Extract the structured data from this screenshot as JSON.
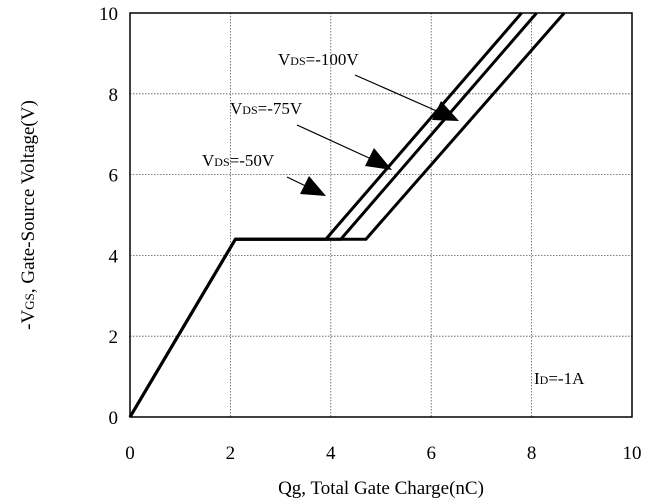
{
  "chart_data": {
    "type": "line",
    "title": "",
    "xlabel": "Qg, Total Gate Charge(nC)",
    "ylabel": "-VGS, Gate-Source Voltage(V)",
    "ylabel_parts": [
      "-V",
      "GS",
      ", Gate-Source Voltage(V)"
    ],
    "xlim": [
      0,
      10
    ],
    "ylim": [
      0,
      10
    ],
    "xticks": [
      0,
      2,
      4,
      6,
      8,
      10
    ],
    "yticks": [
      0,
      2,
      4,
      6,
      8,
      10
    ],
    "grid": true,
    "series": [
      {
        "name": "VDS=-50V",
        "name_parts": [
          "V",
          "DS",
          "=-50V"
        ],
        "x": [
          0,
          2.1,
          3.9,
          7.8
        ],
        "y": [
          0,
          4.4,
          4.4,
          10
        ]
      },
      {
        "name": "VDS=-75V",
        "name_parts": [
          "V",
          "DS",
          "=-75V"
        ],
        "x": [
          0,
          2.1,
          4.2,
          8.1
        ],
        "y": [
          0,
          4.4,
          4.4,
          10
        ]
      },
      {
        "name": "VDS=-100V",
        "name_parts": [
          "V",
          "DS",
          "=-100V"
        ],
        "x": [
          0,
          2.1,
          4.7,
          8.65
        ],
        "y": [
          0,
          4.4,
          4.4,
          10
        ]
      }
    ],
    "annotations": [
      {
        "text": "ID=-1A",
        "parts": [
          "I",
          "D",
          "=-1A"
        ]
      }
    ]
  }
}
